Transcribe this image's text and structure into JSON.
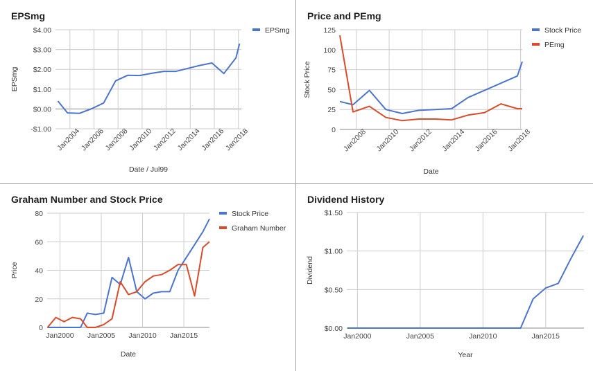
{
  "colors": {
    "blue": "#4a74d2",
    "red": "#de4a27",
    "grid": "#cccccc",
    "zero": "#888888",
    "frame": "#9e9e9e"
  },
  "chart_data": [
    {
      "type": "line",
      "title": "EPSmg",
      "xlabel": "Date / Jul99",
      "ylabel": "EPSmg",
      "x_ticks": [
        {
          "label": "Jan2004",
          "x": 2004
        },
        {
          "label": "Jan2006",
          "x": 2006
        },
        {
          "label": "Jan2008",
          "x": 2008
        },
        {
          "label": "Jan2010",
          "x": 2010
        },
        {
          "label": "Jan2012",
          "x": 2012
        },
        {
          "label": "Jan2014",
          "x": 2014
        },
        {
          "label": "Jan2016",
          "x": 2016
        },
        {
          "label": "Jan2018",
          "x": 2018
        }
      ],
      "x_rotated": true,
      "y_ticks": [
        {
          "label": "$4.00",
          "v": 4
        },
        {
          "label": "$3.00",
          "v": 3
        },
        {
          "label": "$2.00",
          "v": 2
        },
        {
          "label": "$1.00",
          "v": 1
        },
        {
          "label": "$0.00",
          "v": 0
        },
        {
          "label": "-$1.00",
          "v": -1
        }
      ],
      "xlim": [
        2002.8,
        2018.25
      ],
      "ylim": [
        -1,
        4
      ],
      "legend": "right",
      "series": [
        {
          "name": "EPSmg",
          "color": "#4a74d2",
          "x": [
            2003,
            2003.8,
            2004.8,
            2005.8,
            2006.8,
            2007.8,
            2008.8,
            2009.8,
            2010.8,
            2011.8,
            2012.8,
            2013.8,
            2014.8,
            2015.8,
            2016.8,
            2017.8,
            2018.1
          ],
          "y": [
            0.4,
            -0.2,
            -0.22,
            0.01,
            0.3,
            1.42,
            1.7,
            1.69,
            1.8,
            1.9,
            1.9,
            2.05,
            2.2,
            2.32,
            1.79,
            2.58,
            3.3
          ]
        }
      ]
    },
    {
      "type": "line",
      "title": "Price and PEmg",
      "xlabel": "Date",
      "ylabel": "Stock Price",
      "x_ticks": [
        {
          "label": "Jan2008",
          "x": 2008
        },
        {
          "label": "Jan2010",
          "x": 2010
        },
        {
          "label": "Jan2012",
          "x": 2012
        },
        {
          "label": "Jan2014",
          "x": 2014
        },
        {
          "label": "Jan2016",
          "x": 2016
        },
        {
          "label": "Jan2018",
          "x": 2018
        }
      ],
      "x_rotated": true,
      "y_ticks": [
        {
          "label": "125",
          "v": 125
        },
        {
          "label": "100",
          "v": 100
        },
        {
          "label": "75",
          "v": 75
        },
        {
          "label": "50",
          "v": 50
        },
        {
          "label": "25",
          "v": 25
        },
        {
          "label": "0",
          "v": 0
        }
      ],
      "xlim": [
        2007,
        2018.1
      ],
      "ylim": [
        0,
        125
      ],
      "legend": "right",
      "series": [
        {
          "name": "Stock Price",
          "color": "#4a74d2",
          "x": [
            2007,
            2007.8,
            2008.8,
            2009.8,
            2010.8,
            2011.8,
            2012.8,
            2013.8,
            2014.8,
            2015.8,
            2016.8,
            2017.8,
            2018.1
          ],
          "y": [
            35,
            31,
            49,
            25,
            20,
            24,
            25,
            26,
            40,
            49,
            58,
            67,
            85
          ]
        },
        {
          "name": "PEmg",
          "color": "#de4a27",
          "x": [
            2007,
            2007.8,
            2008.8,
            2009.8,
            2010.8,
            2011.8,
            2012.8,
            2013.8,
            2014.8,
            2015.8,
            2016.8,
            2017.8,
            2018.1
          ],
          "y": [
            118,
            22,
            29,
            15,
            11,
            13,
            13,
            12,
            18,
            21,
            32,
            26,
            26
          ]
        }
      ]
    },
    {
      "type": "line",
      "title": "Graham Number and Stock Price",
      "xlabel": "Date",
      "ylabel": "Price",
      "x_ticks": [
        {
          "label": "Jan2000",
          "x": 2000
        },
        {
          "label": "Jan2005",
          "x": 2005
        },
        {
          "label": "Jan2010",
          "x": 2010
        },
        {
          "label": "Jan2015",
          "x": 2015
        }
      ],
      "x_rotated": false,
      "y_ticks": [
        {
          "label": "80",
          "v": 80
        },
        {
          "label": "60",
          "v": 60
        },
        {
          "label": "40",
          "v": 40
        },
        {
          "label": "20",
          "v": 20
        },
        {
          "label": "0",
          "v": 0
        }
      ],
      "xlim": [
        1998.45,
        2018.1
      ],
      "ylim": [
        0,
        80
      ],
      "legend": "right",
      "series": [
        {
          "name": "Stock Price",
          "color": "#4a74d2",
          "x": [
            1998.5,
            1999.5,
            2000.5,
            2001.5,
            2002.5,
            2003.3,
            2004.3,
            2005.3,
            2006.3,
            2007.3,
            2008.3,
            2009.3,
            2010.3,
            2011.3,
            2012.3,
            2013.3,
            2014.3,
            2015.3,
            2016.3,
            2017.3,
            2018.1
          ],
          "y": [
            0,
            0,
            0,
            0,
            0,
            10,
            9,
            10,
            35,
            30,
            49,
            25,
            20,
            24,
            25,
            25,
            40,
            49,
            58,
            67,
            76
          ]
        },
        {
          "name": "Graham Number",
          "color": "#de4a27",
          "x": [
            1998.5,
            1999.5,
            2000.5,
            2001.5,
            2002.5,
            2003.3,
            2004.3,
            2005.3,
            2006.3,
            2007.3,
            2008.3,
            2009.3,
            2010.3,
            2011.3,
            2012.3,
            2013.3,
            2014.3,
            2015.3,
            2016.3,
            2017.3,
            2018.1
          ],
          "y": [
            0,
            7,
            4,
            7,
            6,
            0,
            0,
            2,
            6,
            32,
            23,
            25,
            32,
            36,
            37,
            40,
            44,
            44,
            22,
            56,
            60
          ]
        }
      ]
    },
    {
      "type": "line",
      "title": "Dividend History",
      "xlabel": "Year",
      "ylabel": "Dividend",
      "x_ticks": [
        {
          "label": "Jan2000",
          "x": 2000
        },
        {
          "label": "Jan2005",
          "x": 2005
        },
        {
          "label": "Jan2010",
          "x": 2010
        },
        {
          "label": "Jan2015",
          "x": 2015
        }
      ],
      "x_rotated": false,
      "y_ticks": [
        {
          "label": "$1.50",
          "v": 1.5
        },
        {
          "label": "$1.00",
          "v": 1.0
        },
        {
          "label": "$0.50",
          "v": 0.5
        },
        {
          "label": "$0.00",
          "v": 0
        }
      ],
      "xlim": [
        1999.15,
        2018.05
      ],
      "ylim": [
        0,
        1.5
      ],
      "legend": "none",
      "series": [
        {
          "name": "",
          "color": "#4a74d2",
          "x": [
            1999.2,
            2000,
            2002,
            2004,
            2006,
            2008,
            2010,
            2012,
            2013.0,
            2014.0,
            2015.0,
            2016.0,
            2017.0,
            2018.0
          ],
          "y": [
            0,
            0,
            0,
            0,
            0,
            0,
            0,
            0,
            0,
            0.38,
            0.52,
            0.58,
            0.9,
            1.2
          ]
        }
      ]
    }
  ]
}
